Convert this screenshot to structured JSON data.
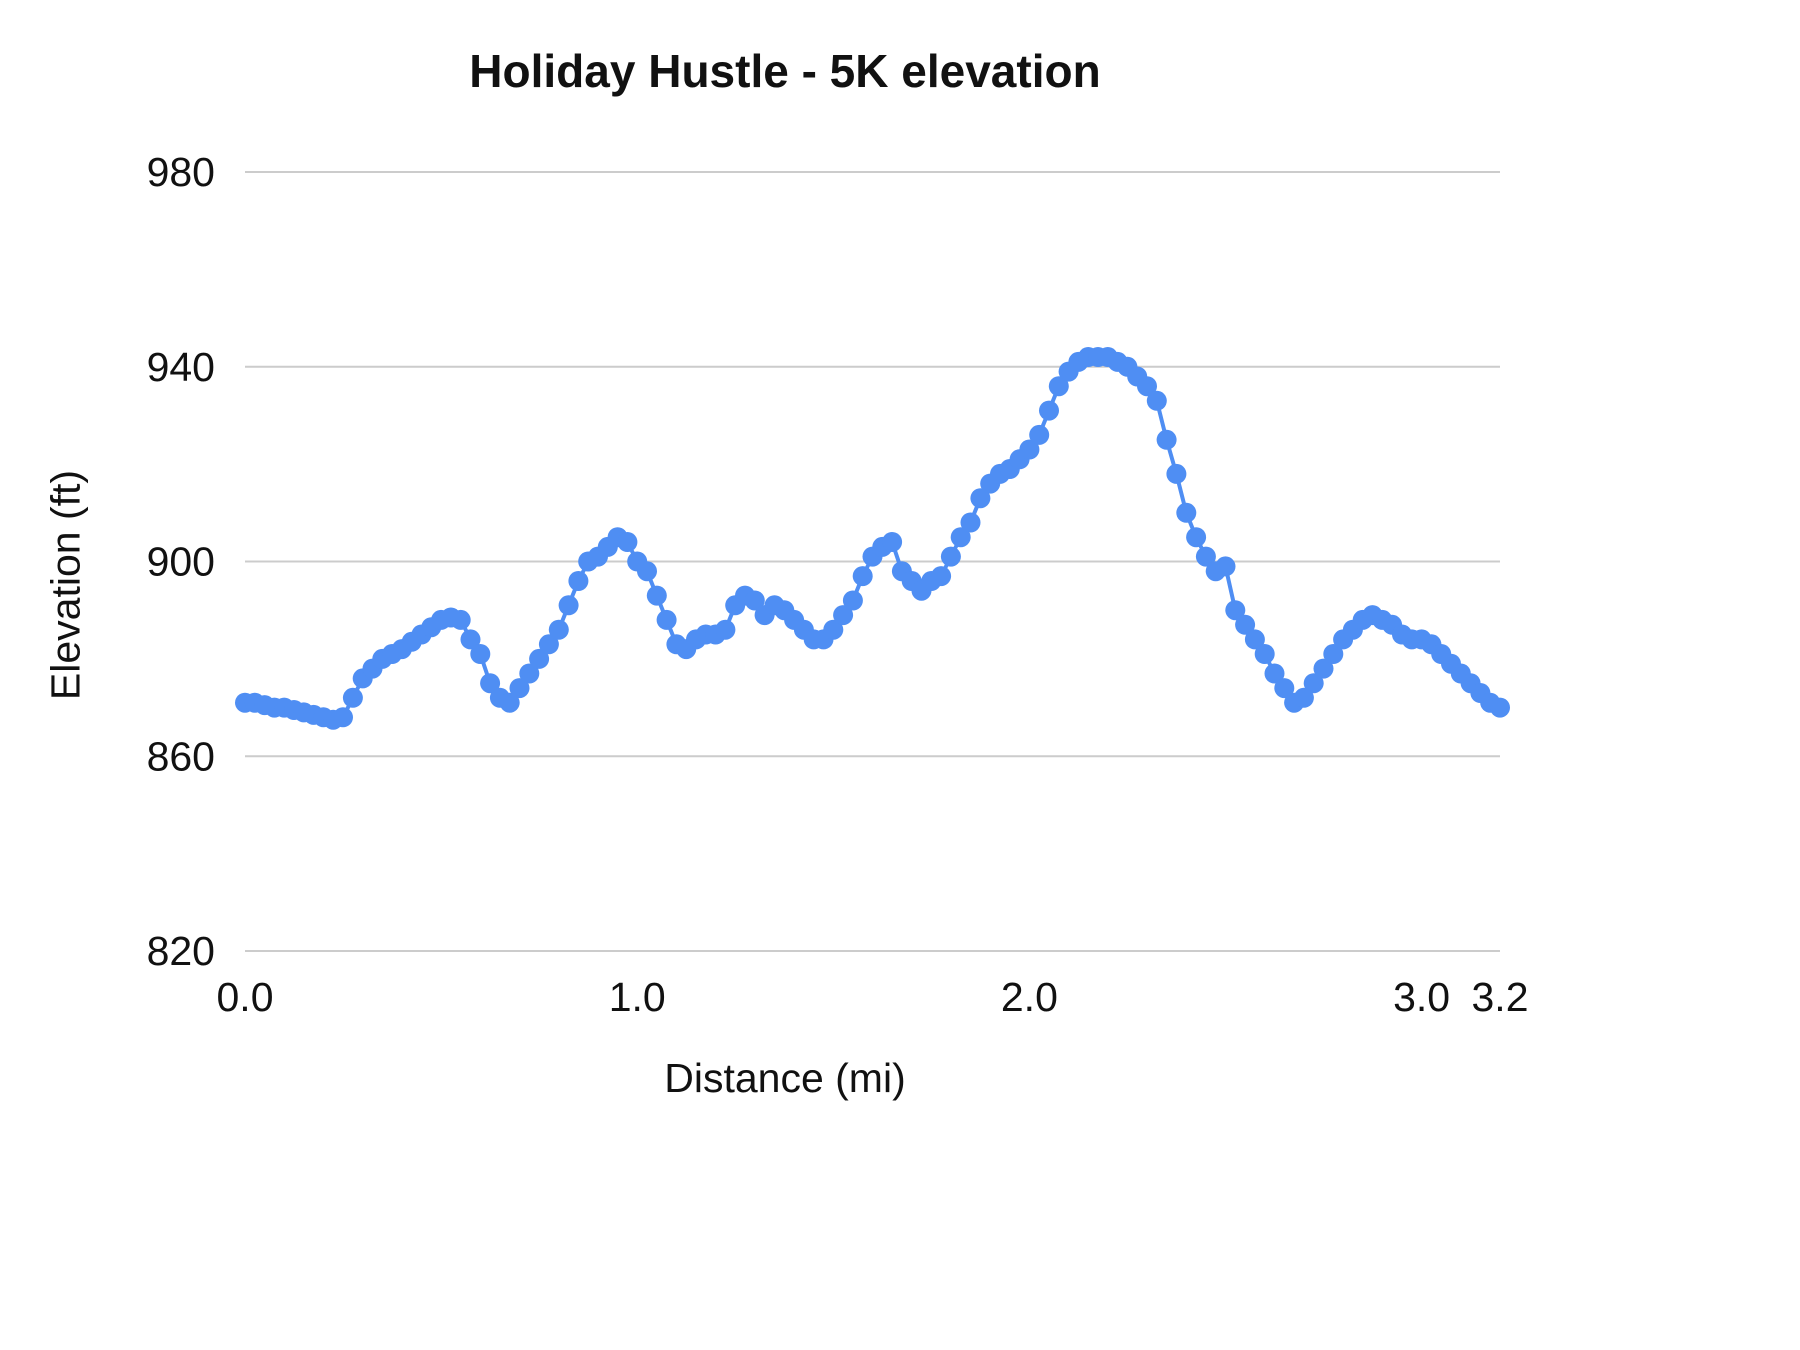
{
  "chart_data": {
    "type": "line",
    "title": "Holiday Hustle - 5K elevation",
    "xlabel": "Distance (mi)",
    "ylabel": "Elevation (ft)",
    "xlim": [
      0,
      3.2
    ],
    "ylim": [
      820,
      980
    ],
    "grid": "horizontal-only",
    "legend": "none",
    "marker": "circle",
    "colors": {
      "series": "#4f8ef3",
      "grid": "#cccccc",
      "text": "#111111",
      "background": "#ffffff"
    },
    "yticks": [
      {
        "value": 820,
        "label": "820"
      },
      {
        "value": 860,
        "label": "860"
      },
      {
        "value": 900,
        "label": "900"
      },
      {
        "value": 940,
        "label": "940"
      },
      {
        "value": 980,
        "label": "980"
      }
    ],
    "xticks": [
      {
        "value": 0.0,
        "label": "0.0"
      },
      {
        "value": 1.0,
        "label": "1.0"
      },
      {
        "value": 2.0,
        "label": "2.0"
      },
      {
        "value": 3.0,
        "label": "3.0"
      },
      {
        "value": 3.2,
        "label": "3.2"
      }
    ],
    "points": [
      [
        0.0,
        871
      ],
      [
        0.025,
        871
      ],
      [
        0.05,
        870.5
      ],
      [
        0.075,
        870
      ],
      [
        0.1,
        870
      ],
      [
        0.125,
        869.5
      ],
      [
        0.15,
        869
      ],
      [
        0.175,
        868.5
      ],
      [
        0.2,
        868
      ],
      [
        0.225,
        867.5
      ],
      [
        0.25,
        868
      ],
      [
        0.275,
        872
      ],
      [
        0.3,
        876
      ],
      [
        0.325,
        878
      ],
      [
        0.35,
        880
      ],
      [
        0.375,
        881
      ],
      [
        0.4,
        882
      ],
      [
        0.425,
        883.5
      ],
      [
        0.45,
        885
      ],
      [
        0.475,
        886.5
      ],
      [
        0.5,
        888
      ],
      [
        0.525,
        888.5
      ],
      [
        0.55,
        888
      ],
      [
        0.575,
        884
      ],
      [
        0.6,
        881
      ],
      [
        0.625,
        875
      ],
      [
        0.65,
        872
      ],
      [
        0.675,
        871
      ],
      [
        0.7,
        874
      ],
      [
        0.725,
        877
      ],
      [
        0.75,
        880
      ],
      [
        0.775,
        883
      ],
      [
        0.8,
        886
      ],
      [
        0.825,
        891
      ],
      [
        0.85,
        896
      ],
      [
        0.875,
        900
      ],
      [
        0.9,
        901
      ],
      [
        0.925,
        903
      ],
      [
        0.95,
        905
      ],
      [
        0.975,
        904
      ],
      [
        1.0,
        900
      ],
      [
        1.025,
        898
      ],
      [
        1.05,
        893
      ],
      [
        1.075,
        888
      ],
      [
        1.1,
        883
      ],
      [
        1.125,
        882
      ],
      [
        1.15,
        884
      ],
      [
        1.175,
        885
      ],
      [
        1.2,
        885
      ],
      [
        1.225,
        886
      ],
      [
        1.25,
        891
      ],
      [
        1.275,
        893
      ],
      [
        1.3,
        892
      ],
      [
        1.325,
        889
      ],
      [
        1.35,
        891
      ],
      [
        1.375,
        890
      ],
      [
        1.4,
        888
      ],
      [
        1.425,
        886
      ],
      [
        1.45,
        884
      ],
      [
        1.475,
        884
      ],
      [
        1.5,
        886
      ],
      [
        1.525,
        889
      ],
      [
        1.55,
        892
      ],
      [
        1.575,
        897
      ],
      [
        1.6,
        901
      ],
      [
        1.625,
        903
      ],
      [
        1.65,
        904
      ],
      [
        1.675,
        898
      ],
      [
        1.7,
        896
      ],
      [
        1.725,
        894
      ],
      [
        1.75,
        896
      ],
      [
        1.775,
        897
      ],
      [
        1.8,
        901
      ],
      [
        1.825,
        905
      ],
      [
        1.85,
        908
      ],
      [
        1.875,
        913
      ],
      [
        1.9,
        916
      ],
      [
        1.925,
        918
      ],
      [
        1.95,
        919
      ],
      [
        1.975,
        921
      ],
      [
        2.0,
        923
      ],
      [
        2.025,
        926
      ],
      [
        2.05,
        931
      ],
      [
        2.075,
        936
      ],
      [
        2.1,
        939
      ],
      [
        2.125,
        941
      ],
      [
        2.15,
        942
      ],
      [
        2.175,
        942
      ],
      [
        2.2,
        942
      ],
      [
        2.225,
        941
      ],
      [
        2.25,
        940
      ],
      [
        2.275,
        938
      ],
      [
        2.3,
        936
      ],
      [
        2.325,
        933
      ],
      [
        2.35,
        925
      ],
      [
        2.375,
        918
      ],
      [
        2.4,
        910
      ],
      [
        2.425,
        905
      ],
      [
        2.45,
        901
      ],
      [
        2.475,
        898
      ],
      [
        2.5,
        899
      ],
      [
        2.525,
        890
      ],
      [
        2.55,
        887
      ],
      [
        2.575,
        884
      ],
      [
        2.6,
        881
      ],
      [
        2.625,
        877
      ],
      [
        2.65,
        874
      ],
      [
        2.675,
        871
      ],
      [
        2.7,
        872
      ],
      [
        2.725,
        875
      ],
      [
        2.75,
        878
      ],
      [
        2.775,
        881
      ],
      [
        2.8,
        884
      ],
      [
        2.825,
        886
      ],
      [
        2.85,
        888
      ],
      [
        2.875,
        889
      ],
      [
        2.9,
        888
      ],
      [
        2.925,
        887
      ],
      [
        2.95,
        885
      ],
      [
        2.975,
        884
      ],
      [
        3.0,
        884
      ],
      [
        3.025,
        883
      ],
      [
        3.05,
        881
      ],
      [
        3.075,
        879
      ],
      [
        3.1,
        877
      ],
      [
        3.125,
        875
      ],
      [
        3.15,
        873
      ],
      [
        3.175,
        871
      ],
      [
        3.2,
        870
      ]
    ]
  }
}
